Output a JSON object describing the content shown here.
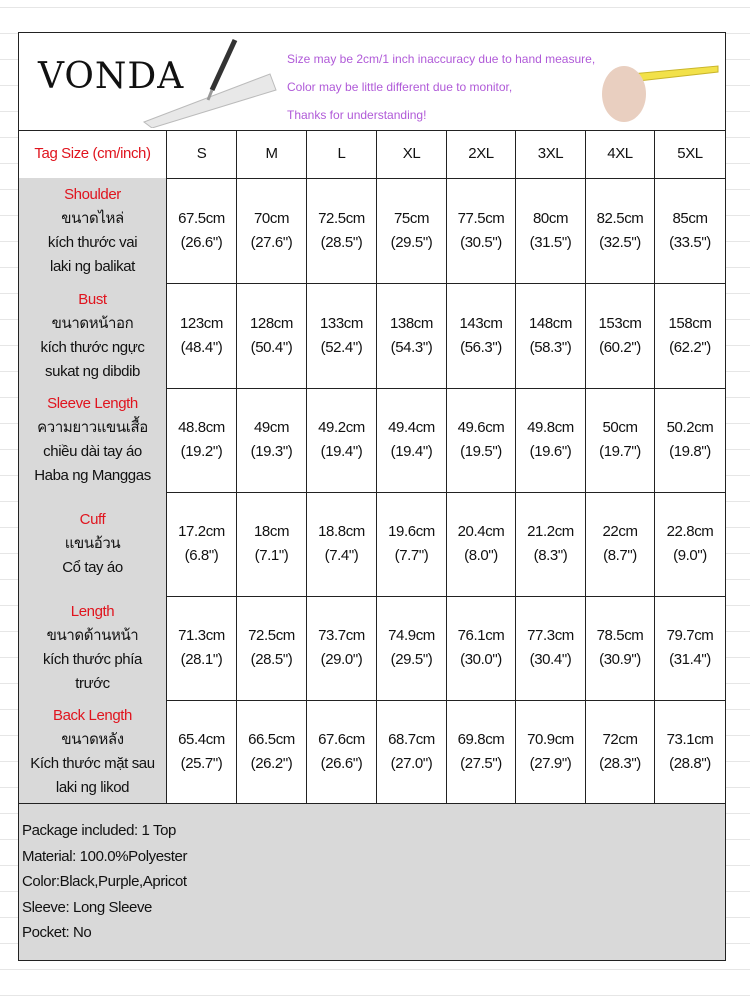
{
  "header": {
    "brand": "VONDA",
    "notes": [
      "Size may be 2cm/1 inch inaccuracy due to hand measure,",
      "Color may be little different due to monitor,",
      "Thanks for understanding!"
    ]
  },
  "table": {
    "header_label": "Tag Size (cm/inch)",
    "sizes": [
      "S",
      "M",
      "L",
      "XL",
      "2XL",
      "3XL",
      "4XL",
      "5XL"
    ],
    "rows": [
      {
        "labels": [
          "Shoulder",
          "ขนาดไหล่",
          "kích thước vai",
          "laki ng balikat"
        ],
        "cells": [
          [
            "67.5cm",
            "(26.6\")"
          ],
          [
            "70cm",
            "(27.6\")"
          ],
          [
            "72.5cm",
            "(28.5\")"
          ],
          [
            "75cm",
            "(29.5\")"
          ],
          [
            "77.5cm",
            "(30.5\")"
          ],
          [
            "80cm",
            "(31.5\")"
          ],
          [
            "82.5cm",
            "(32.5\")"
          ],
          [
            "85cm",
            "(33.5\")"
          ]
        ]
      },
      {
        "labels": [
          "Bust",
          "ขนาดหน้าอก",
          "kích thước ngực",
          "sukat ng dibdib"
        ],
        "cells": [
          [
            "123cm",
            "(48.4\")"
          ],
          [
            "128cm",
            "(50.4\")"
          ],
          [
            "133cm",
            "(52.4\")"
          ],
          [
            "138cm",
            "(54.3\")"
          ],
          [
            "143cm",
            "(56.3\")"
          ],
          [
            "148cm",
            "(58.3\")"
          ],
          [
            "153cm",
            "(60.2\")"
          ],
          [
            "158cm",
            "(62.2\")"
          ]
        ]
      },
      {
        "labels": [
          "Sleeve Length",
          "ความยาวแขนเสื้อ",
          "chiều dài tay áo",
          "Haba ng Manggas"
        ],
        "cells": [
          [
            "48.8cm",
            "(19.2\")"
          ],
          [
            "49cm",
            "(19.3\")"
          ],
          [
            "49.2cm",
            "(19.4\")"
          ],
          [
            "49.4cm",
            "(19.4\")"
          ],
          [
            "49.6cm",
            "(19.5\")"
          ],
          [
            "49.8cm",
            "(19.6\")"
          ],
          [
            "50cm",
            "(19.7\")"
          ],
          [
            "50.2cm",
            "(19.8\")"
          ]
        ]
      },
      {
        "labels": [
          "Cuff",
          "แขนอ้วน",
          "Cổ tay áo"
        ],
        "cells": [
          [
            "17.2cm",
            "(6.8\")"
          ],
          [
            "18cm",
            "(7.1\")"
          ],
          [
            "18.8cm",
            "(7.4\")"
          ],
          [
            "19.6cm",
            "(7.7\")"
          ],
          [
            "20.4cm",
            "(8.0\")"
          ],
          [
            "21.2cm",
            "(8.3\")"
          ],
          [
            "22cm",
            "(8.7\")"
          ],
          [
            "22.8cm",
            "(9.0\")"
          ]
        ]
      },
      {
        "labels": [
          "Length",
          "ขนาดด้านหน้า",
          "kích thước phía",
          "trước"
        ],
        "cells": [
          [
            "71.3cm",
            "(28.1\")"
          ],
          [
            "72.5cm",
            "(28.5\")"
          ],
          [
            "73.7cm",
            "(29.0\")"
          ],
          [
            "74.9cm",
            "(29.5\")"
          ],
          [
            "76.1cm",
            "(30.0\")"
          ],
          [
            "77.3cm",
            "(30.4\")"
          ],
          [
            "78.5cm",
            "(30.9\")"
          ],
          [
            "79.7cm",
            "(31.4\")"
          ]
        ]
      },
      {
        "labels": [
          "Back Length",
          "ขนาดหลัง",
          "Kích thước mặt sau",
          "laki ng likod"
        ],
        "cells": [
          [
            "65.4cm",
            "(25.7\")"
          ],
          [
            "66.5cm",
            "(26.2\")"
          ],
          [
            "67.6cm",
            "(26.6\")"
          ],
          [
            "68.7cm",
            "(27.0\")"
          ],
          [
            "69.8cm",
            "(27.5\")"
          ],
          [
            "70.9cm",
            "(27.9\")"
          ],
          [
            "72cm",
            "(28.3\")"
          ],
          [
            "73.1cm",
            "(28.8\")"
          ]
        ]
      }
    ]
  },
  "package": [
    "Package included: 1 Top",
    "Material: 100.0%Polyester",
    "Color:Black,Purple,Apricot",
    "Sleeve: Long Sleeve",
    "Pocket: No"
  ]
}
